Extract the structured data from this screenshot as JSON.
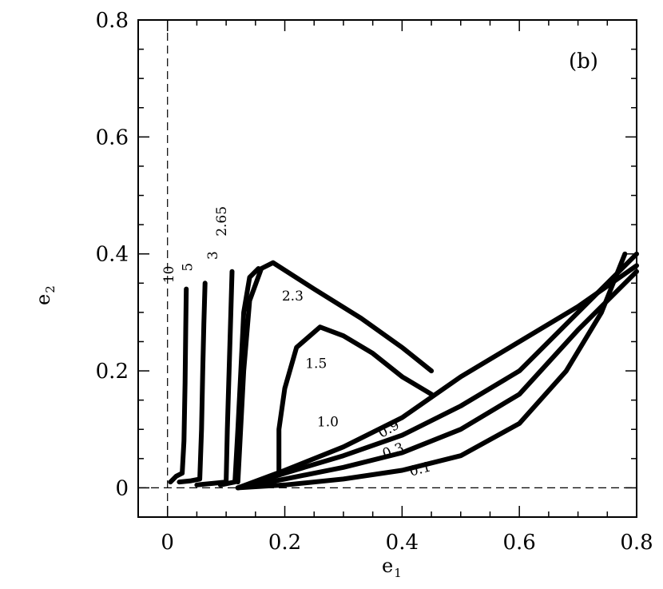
{
  "chart_data": {
    "type": "scatter",
    "panel_label": "(b)",
    "xlabel": "e",
    "xlabel_sub": "1",
    "ylabel": "e",
    "ylabel_sub": "2",
    "xlim": [
      -0.05,
      0.8
    ],
    "ylim": [
      -0.05,
      0.8
    ],
    "x_ticks": [
      {
        "value": 0,
        "label": "0"
      },
      {
        "value": 0.2,
        "label": "0.2"
      },
      {
        "value": 0.4,
        "label": "0.4"
      },
      {
        "value": 0.6,
        "label": "0.6"
      },
      {
        "value": 0.8,
        "label": "0.8"
      }
    ],
    "y_ticks": [
      {
        "value": 0,
        "label": "0"
      },
      {
        "value": 0.2,
        "label": "0.2"
      },
      {
        "value": 0.4,
        "label": "0.4"
      },
      {
        "value": 0.6,
        "label": "0.6"
      },
      {
        "value": 0.8,
        "label": "0.8"
      }
    ],
    "reference_lines": {
      "x": 0,
      "y": 0
    },
    "series": [
      {
        "label": "10",
        "points": [
          [
            0.005,
            0.01
          ],
          [
            0.015,
            0.02
          ],
          [
            0.025,
            0.025
          ],
          [
            0.028,
            0.08
          ],
          [
            0.03,
            0.18
          ],
          [
            0.031,
            0.27
          ],
          [
            0.032,
            0.34
          ]
        ]
      },
      {
        "label": "5",
        "points": [
          [
            0.02,
            0.01
          ],
          [
            0.04,
            0.012
          ],
          [
            0.055,
            0.015
          ],
          [
            0.058,
            0.1
          ],
          [
            0.06,
            0.2
          ],
          [
            0.062,
            0.28
          ],
          [
            0.064,
            0.35
          ]
        ]
      },
      {
        "label": "3",
        "points": [
          [
            0.05,
            0.005
          ],
          [
            0.08,
            0.008
          ],
          [
            0.1,
            0.01
          ],
          [
            0.102,
            0.1
          ],
          [
            0.105,
            0.2
          ],
          [
            0.108,
            0.3
          ],
          [
            0.11,
            0.37
          ]
        ]
      },
      {
        "label": "2.65",
        "points": [
          [
            0.09,
            0.005
          ],
          [
            0.115,
            0.01
          ],
          [
            0.12,
            0.1
          ],
          [
            0.125,
            0.2
          ],
          [
            0.13,
            0.3
          ],
          [
            0.14,
            0.36
          ],
          [
            0.155,
            0.375
          ]
        ]
      },
      {
        "label": "2.3",
        "points": [
          [
            0.12,
            0.01
          ],
          [
            0.13,
            0.2
          ],
          [
            0.14,
            0.32
          ],
          [
            0.16,
            0.375
          ],
          [
            0.18,
            0.385
          ],
          [
            0.25,
            0.34
          ],
          [
            0.33,
            0.29
          ],
          [
            0.4,
            0.24
          ],
          [
            0.45,
            0.2
          ]
        ]
      },
      {
        "label": "1.5",
        "points": [
          [
            0.19,
            0.03
          ],
          [
            0.19,
            0.1
          ],
          [
            0.2,
            0.17
          ],
          [
            0.22,
            0.24
          ],
          [
            0.26,
            0.275
          ],
          [
            0.3,
            0.26
          ],
          [
            0.35,
            0.23
          ],
          [
            0.4,
            0.19
          ],
          [
            0.45,
            0.16
          ]
        ]
      },
      {
        "label": "1.0",
        "points": [
          [
            0.12,
            0.0
          ],
          [
            0.2,
            0.03
          ],
          [
            0.3,
            0.07
          ],
          [
            0.4,
            0.12
          ],
          [
            0.5,
            0.19
          ],
          [
            0.6,
            0.25
          ],
          [
            0.7,
            0.31
          ],
          [
            0.8,
            0.38
          ]
        ]
      },
      {
        "label": "0.9",
        "points": [
          [
            0.12,
            0.0
          ],
          [
            0.2,
            0.025
          ],
          [
            0.3,
            0.055
          ],
          [
            0.4,
            0.09
          ],
          [
            0.5,
            0.14
          ],
          [
            0.6,
            0.2
          ],
          [
            0.7,
            0.3
          ],
          [
            0.8,
            0.4
          ]
        ]
      },
      {
        "label": "0.3",
        "points": [
          [
            0.12,
            0.0
          ],
          [
            0.2,
            0.015
          ],
          [
            0.3,
            0.035
          ],
          [
            0.4,
            0.06
          ],
          [
            0.5,
            0.1
          ],
          [
            0.6,
            0.16
          ],
          [
            0.7,
            0.27
          ],
          [
            0.8,
            0.37
          ]
        ]
      },
      {
        "label": "0.1",
        "points": [
          [
            0.12,
            0.0
          ],
          [
            0.2,
            0.005
          ],
          [
            0.3,
            0.015
          ],
          [
            0.4,
            0.03
          ],
          [
            0.5,
            0.055
          ],
          [
            0.6,
            0.11
          ],
          [
            0.68,
            0.2
          ],
          [
            0.74,
            0.3
          ],
          [
            0.78,
            0.4
          ]
        ]
      }
    ],
    "curve_labels": [
      {
        "text": "10",
        "x": 0.01,
        "y": 0.35,
        "rotation": -90
      },
      {
        "text": "5",
        "x": 0.042,
        "y": 0.37,
        "rotation": -90
      },
      {
        "text": "3",
        "x": 0.085,
        "y": 0.39,
        "rotation": -90
      },
      {
        "text": "2.65",
        "x": 0.1,
        "y": 0.43,
        "rotation": -90
      },
      {
        "text": "2.3",
        "x": 0.195,
        "y": 0.32,
        "rotation": 0
      },
      {
        "text": "1.5",
        "x": 0.235,
        "y": 0.205,
        "rotation": 0
      },
      {
        "text": "1.0",
        "x": 0.255,
        "y": 0.105,
        "rotation": 0
      },
      {
        "text": "0.9",
        "x": 0.365,
        "y": 0.085,
        "rotation": -30
      },
      {
        "text": "0.3",
        "x": 0.37,
        "y": 0.05,
        "rotation": -20
      },
      {
        "text": "0.1",
        "x": 0.415,
        "y": 0.02,
        "rotation": -15
      }
    ]
  }
}
